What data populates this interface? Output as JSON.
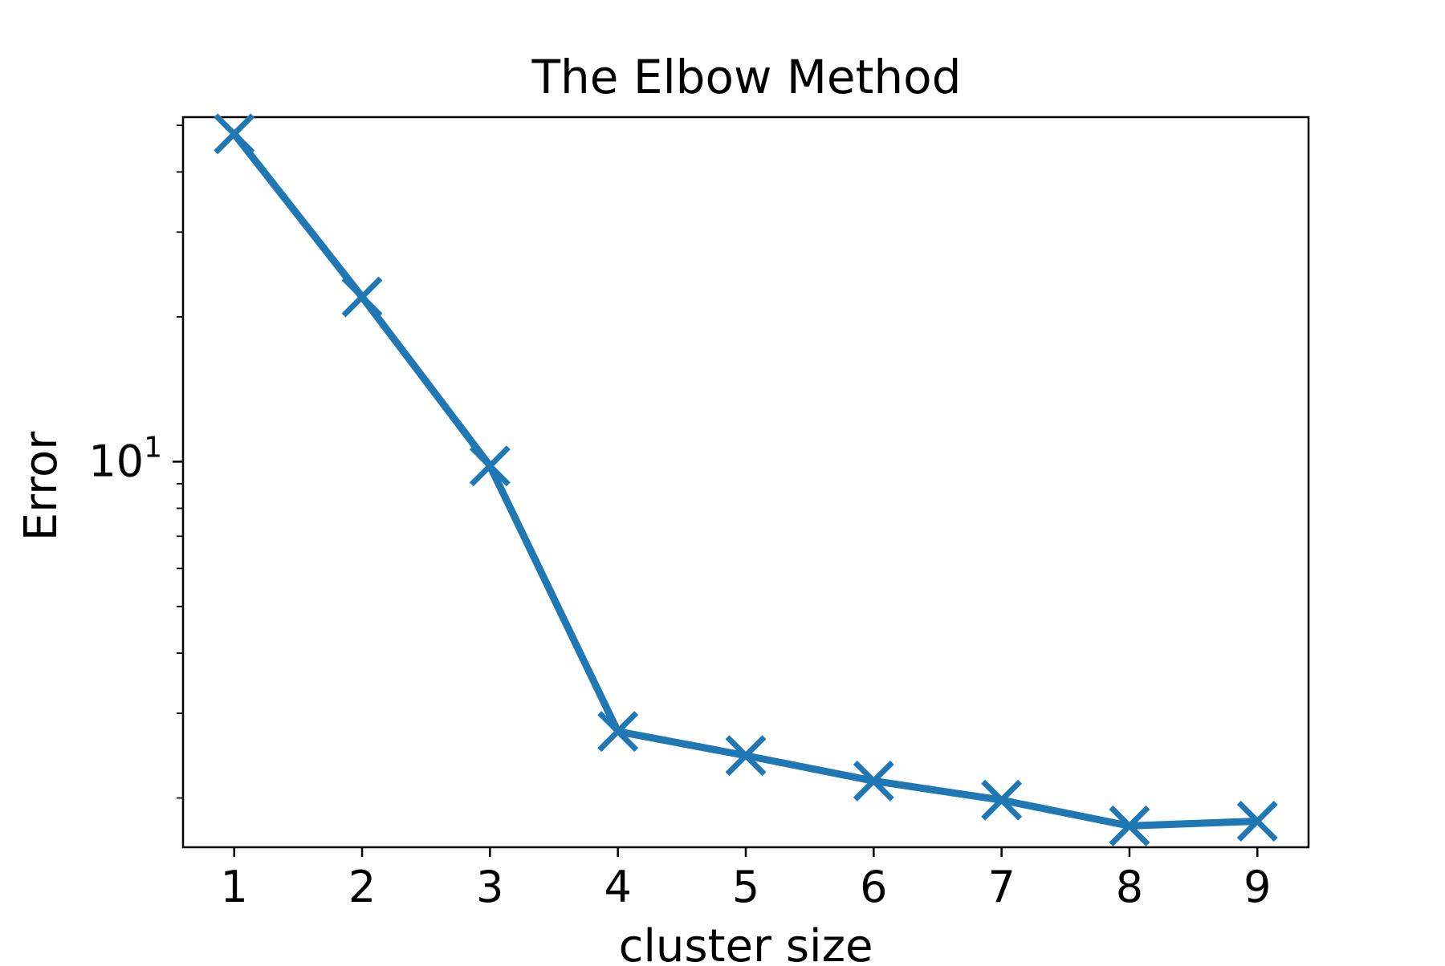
{
  "chart_data": {
    "type": "line",
    "title": "The Elbow Method",
    "xlabel": "cluster size",
    "ylabel": "Error",
    "x": [
      1,
      2,
      3,
      4,
      5,
      6,
      7,
      8,
      9
    ],
    "series": [
      {
        "values": [
          48.0,
          22.0,
          9.8,
          2.75,
          2.45,
          2.17,
          1.98,
          1.75,
          1.79
        ],
        "color": "#1f77b4",
        "marker": "x"
      }
    ],
    "xticks": [
      "1",
      "2",
      "3",
      "4",
      "5",
      "6",
      "7",
      "8",
      "9"
    ],
    "yscale": "log",
    "ytick_label": {
      "base": "10",
      "exp": "1"
    },
    "xlim": [
      0.6,
      9.4
    ],
    "ylim": [
      1.58,
      52
    ],
    "grid": false
  }
}
